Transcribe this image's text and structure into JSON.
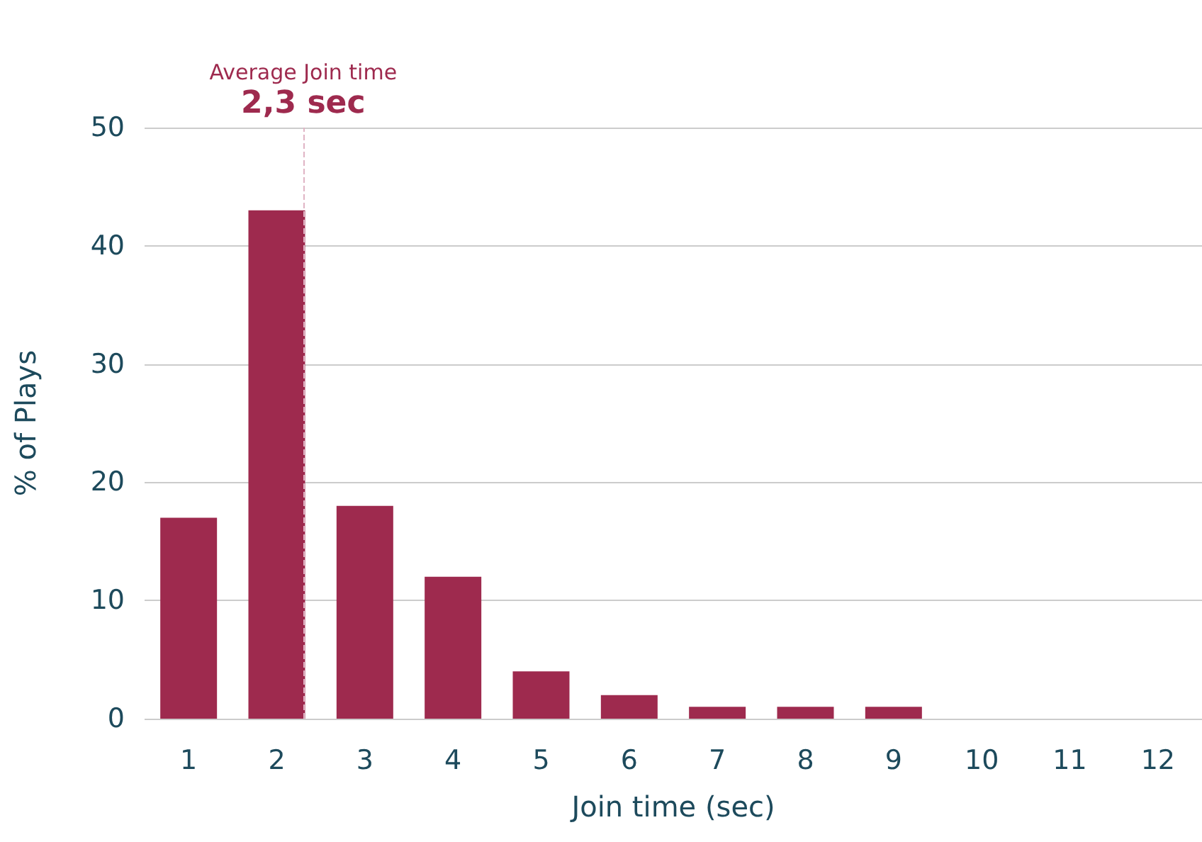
{
  "chart_data": {
    "type": "bar",
    "xlabel": "Join time (sec)",
    "ylabel": "% of Plays",
    "x": [
      1,
      2,
      3,
      4,
      5,
      6,
      7,
      8,
      9,
      10,
      11,
      12
    ],
    "values": [
      17,
      43,
      18,
      12,
      4,
      2,
      1,
      1,
      1,
      0,
      0,
      0
    ],
    "color": "#9e2a4e",
    "xlim": [
      0.5,
      12.5
    ],
    "xticks": [
      1,
      2,
      3,
      4,
      5,
      6,
      7,
      8,
      9,
      10,
      11,
      12
    ],
    "ylim": [
      0,
      50
    ],
    "yticks": [
      0,
      10,
      20,
      30,
      40,
      50
    ],
    "grid": "y",
    "ref_lines": [
      {
        "axis": "x",
        "value": 2.3,
        "label": "2,3 sec",
        "color": "#e0b4c4",
        "line_style": "dashed"
      }
    ],
    "annotations": [
      "Average Join time"
    ]
  }
}
